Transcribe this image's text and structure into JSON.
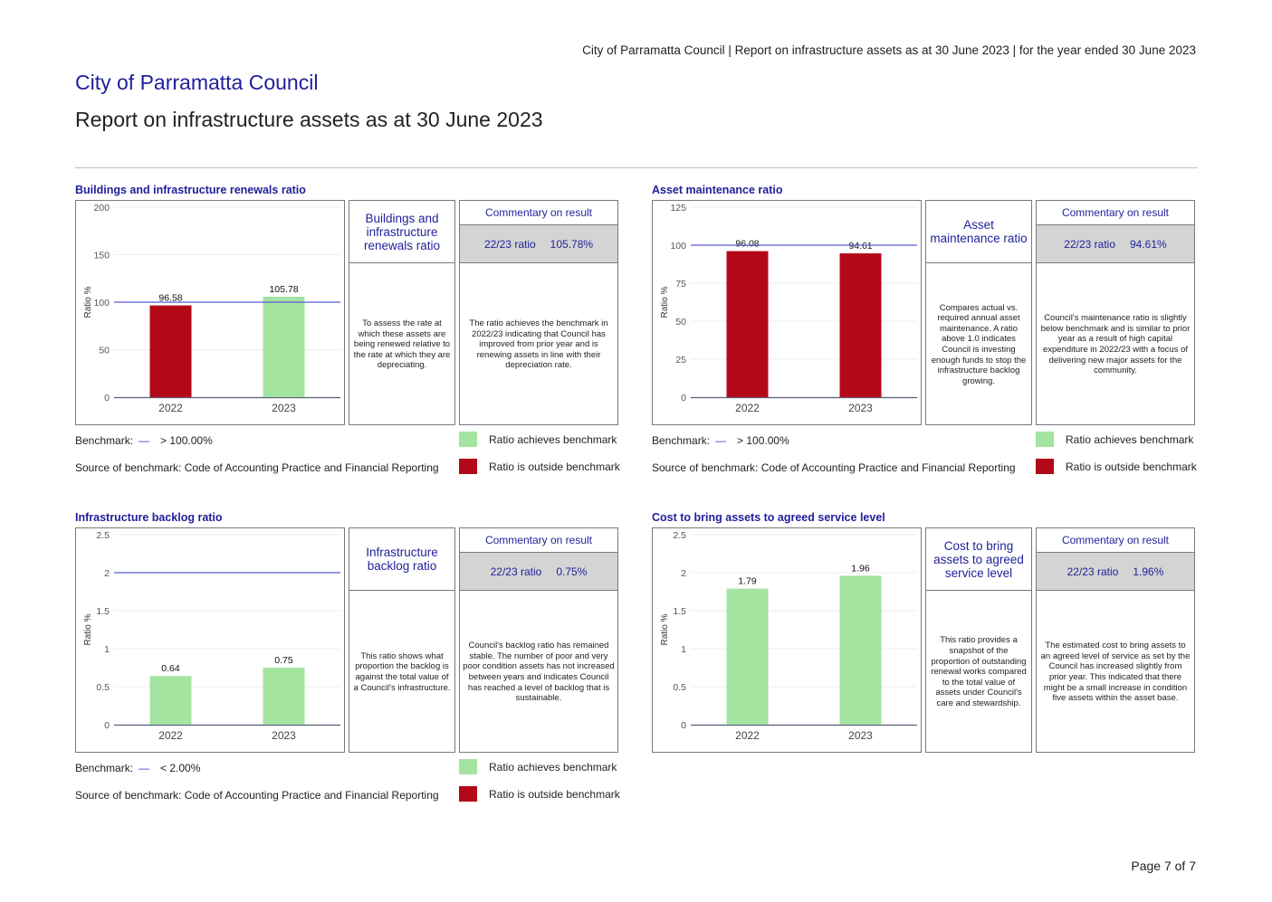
{
  "header": {
    "running_title": "City of Parramatta Council | Report on infrastructure assets as at 30 June 2023 | for the year ended 30 June 2023",
    "organisation": "City of Parramatta Council",
    "report_title": "Report on infrastructure assets as at 30 June 2023"
  },
  "colors": {
    "achieves": "#a3e4a0",
    "outside": "#b30818",
    "benchmark_line": "#5a5ad6",
    "accent": "#1f1f9a"
  },
  "legend": {
    "achieves_label": "Ratio achieves benchmark",
    "outside_label": "Ratio is outside benchmark"
  },
  "panels": [
    {
      "title": "Buildings and infrastructure renewals ratio",
      "desc_title": "Buildings and infrastructure renewals ratio",
      "desc_text": "To assess the rate at which these assets are being renewed relative to the rate at which they are depreciating.",
      "commentary_head": "Commentary on result",
      "ratio_label": "22/23 ratio",
      "ratio_value": "105.78%",
      "commentary": "The ratio achieves the benchmark in 2022/23 indicating that Council has improved from prior year and is renewing assets in line with their depreciation rate.",
      "benchmark_label": "Benchmark:",
      "benchmark_dash": "—",
      "benchmark_value": "> 100.00%",
      "source": "Source of benchmark: Code of Accounting Practice and Financial Reporting",
      "show_legend": true
    },
    {
      "title": "Asset maintenance ratio",
      "desc_title": "Asset maintenance ratio",
      "desc_text": "Compares actual vs. required annual asset maintenance. A ratio above 1.0 indicates Council is investing enough funds to stop the infrastructure backlog growing.",
      "commentary_head": "Commentary on result",
      "ratio_label": "22/23 ratio",
      "ratio_value": "94.61%",
      "commentary": "Council's maintenance ratio is slightly below benchmark and is similar to prior year as a result of high capital expenditure in 2022/23 with a focus of delivering new major assets for the community.",
      "benchmark_label": "Benchmark:",
      "benchmark_dash": "—",
      "benchmark_value": "> 100.00%",
      "source": "Source of benchmark: Code of Accounting Practice and Financial Reporting",
      "show_legend": true
    },
    {
      "title": "Infrastructure backlog ratio",
      "desc_title": "Infrastructure backlog ratio",
      "desc_text": "This ratio shows what proportion the backlog is against the total value of a Council's infrastructure.",
      "commentary_head": "Commentary on result",
      "ratio_label": "22/23 ratio",
      "ratio_value": "0.75%",
      "commentary": "Council's backlog ratio has remained stable. The number of poor and very poor condition assets has not increased between years and indicates Council has reached a level of backlog that is sustainable.",
      "benchmark_label": "Benchmark:",
      "benchmark_dash": "—",
      "benchmark_value": "< 2.00%",
      "source": "Source of benchmark: Code of Accounting Practice and Financial Reporting",
      "show_legend": true
    },
    {
      "title": "Cost to bring assets to agreed service level",
      "desc_title": "Cost to bring assets to agreed service level",
      "desc_text": "This ratio provides a snapshot of the proportion of outstanding renewal works compared to the total value of assets under Council's care and stewardship.",
      "commentary_head": "Commentary on result",
      "ratio_label": "22/23 ratio",
      "ratio_value": "1.96%",
      "commentary": "The estimated cost to bring assets to an agreed level of service as set by the Council has increased slightly from prior year. This indicated that there might be a small increase in condition five assets within the asset base.",
      "show_legend": false
    }
  ],
  "chart_data": [
    {
      "type": "bar",
      "title": "Buildings and infrastructure renewals ratio",
      "categories": [
        "2022",
        "2023"
      ],
      "values": [
        96.58,
        105.78
      ],
      "value_labels": [
        "96.58",
        "105.78"
      ],
      "bar_status": [
        "outside",
        "achieves"
      ],
      "ylabel": "Ratio %",
      "ylim": [
        0,
        200
      ],
      "yticks": [
        0,
        50,
        100,
        150,
        200
      ],
      "ytick_labels": [
        "0",
        "50",
        "100",
        "150",
        "200"
      ],
      "benchmark": 100
    },
    {
      "type": "bar",
      "title": "Asset maintenance ratio",
      "categories": [
        "2022",
        "2023"
      ],
      "values": [
        96.08,
        94.61
      ],
      "value_labels": [
        "96.08",
        "94.61"
      ],
      "bar_status": [
        "outside",
        "outside"
      ],
      "ylabel": "Ratio %",
      "ylim": [
        0,
        125
      ],
      "yticks": [
        0,
        25,
        50,
        75,
        100,
        125
      ],
      "ytick_labels": [
        "0",
        "25",
        "50",
        "75",
        "100",
        "125"
      ],
      "benchmark": 100
    },
    {
      "type": "bar",
      "title": "Infrastructure backlog ratio",
      "categories": [
        "2022",
        "2023"
      ],
      "values": [
        0.64,
        0.75
      ],
      "value_labels": [
        "0.64",
        "0.75"
      ],
      "bar_status": [
        "achieves",
        "achieves"
      ],
      "ylabel": "Ratio %",
      "ylim": [
        0,
        2.5
      ],
      "yticks": [
        0,
        0.5,
        1,
        1.5,
        2,
        2.5
      ],
      "ytick_labels": [
        "0",
        "0.5",
        "1",
        "1.5",
        "2",
        "2.5"
      ],
      "benchmark": 2
    },
    {
      "type": "bar",
      "title": "Cost to bring assets to agreed service level",
      "categories": [
        "2022",
        "2023"
      ],
      "values": [
        1.79,
        1.96
      ],
      "value_labels": [
        "1.79",
        "1.96"
      ],
      "bar_status": [
        "achieves",
        "achieves"
      ],
      "ylabel": "Ratio %",
      "ylim": [
        0,
        2.5
      ],
      "yticks": [
        0,
        0.5,
        1,
        1.5,
        2,
        2.5
      ],
      "ytick_labels": [
        "0",
        "0.5",
        "1",
        "1.5",
        "2",
        "2.5"
      ],
      "benchmark": null
    }
  ],
  "footer": {
    "page": "Page 7 of 7"
  }
}
